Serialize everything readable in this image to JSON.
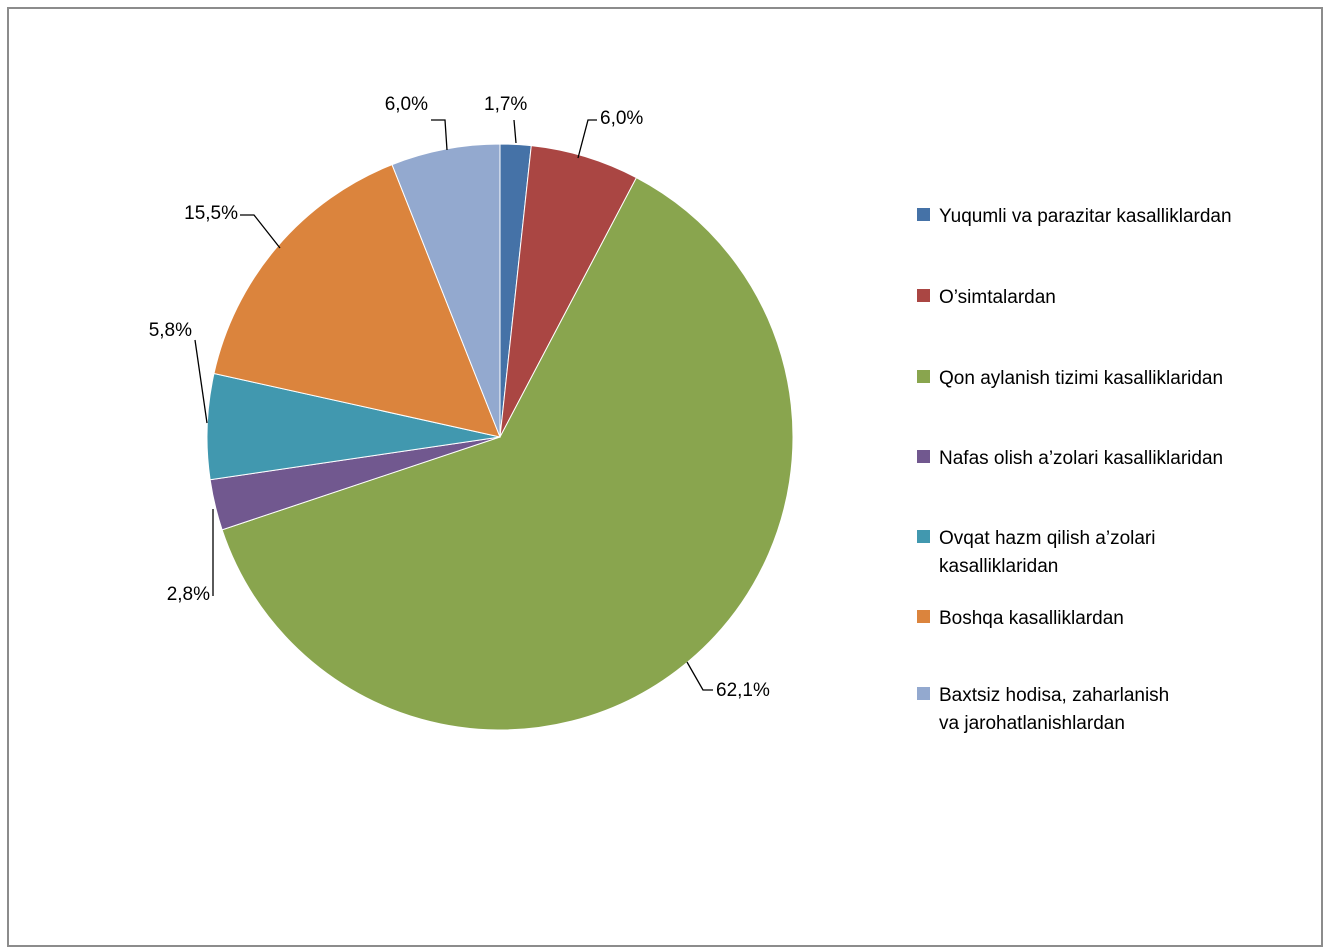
{
  "chart_data": {
    "type": "pie",
    "title": "",
    "legend_position": "right",
    "categories": [
      "Yuqumli va parazitar kasalliklardan",
      "O’simtalardan",
      "Qon aylanish tizimi kasalliklaridan",
      "Nafas olish a’zolari kasalliklaridan",
      "Ovqat hazm qilish a’zolari kasalliklaridan",
      "Boshqa kasalliklardan",
      "Baxtsiz hodisa, zaharlanish va jarohatlanishlardan"
    ],
    "legend_lines": [
      [
        "Yuqumli va parazitar kasalliklardan"
      ],
      [
        "O’simtalardan"
      ],
      [
        "Qon aylanish tizimi kasalliklaridan"
      ],
      [
        "Nafas olish a’zolari kasalliklaridan"
      ],
      [
        "Ovqat hazm qilish a’zolari",
        "kasalliklaridan"
      ],
      [
        "Boshqa kasalliklardan"
      ],
      [
        "Baxtsiz hodisa, zaharlanish",
        "va jarohatlanishlardan"
      ]
    ],
    "values": [
      1.7,
      6.0,
      62.1,
      2.8,
      5.8,
      15.5,
      6.0
    ],
    "data_labels": [
      "1,7%",
      "6,0%",
      "62,1%",
      "2,8%",
      "5,8%",
      "15,5%",
      "6,0%"
    ],
    "colors": [
      "#4572a7",
      "#aa4643",
      "#89a54e",
      "#71588f",
      "#4198af",
      "#db843d",
      "#93a9cf"
    ]
  }
}
